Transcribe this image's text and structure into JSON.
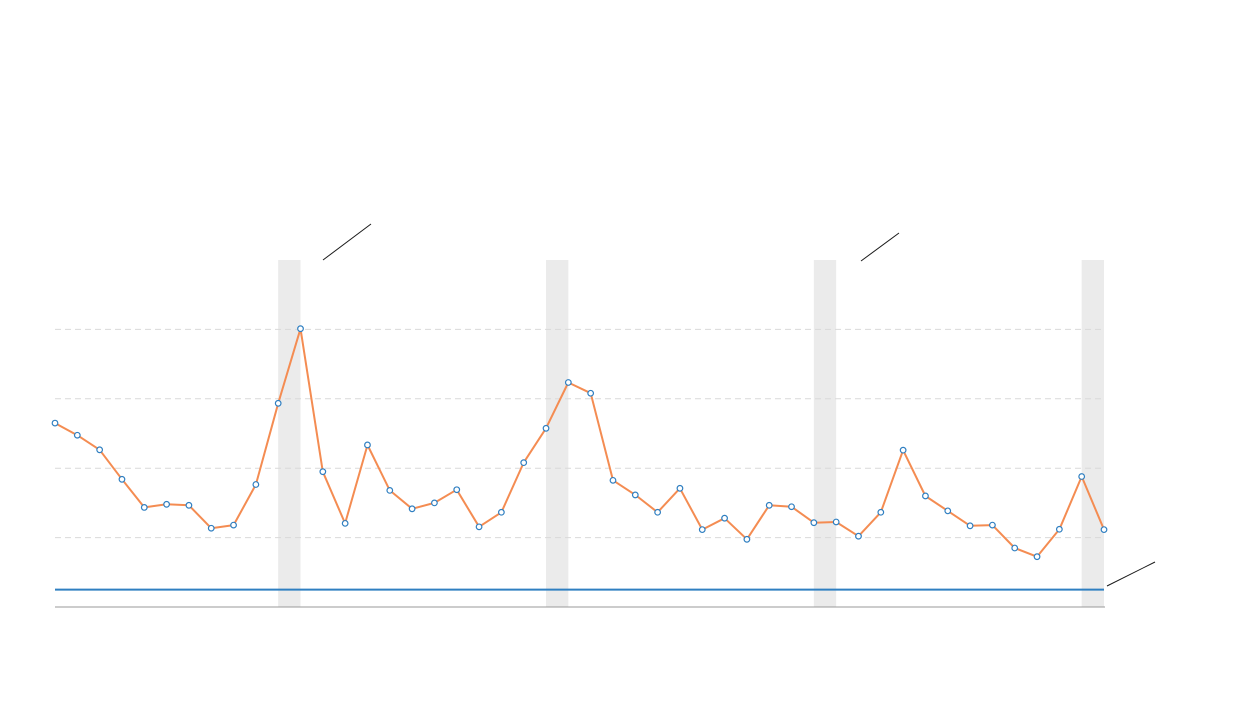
{
  "chart_data": {
    "type": "line",
    "title": "",
    "xlabel": "",
    "ylabel": "",
    "ylim": [
      0,
      100
    ],
    "grid": true,
    "grid_values": [
      20,
      40,
      60,
      80
    ],
    "x": [
      0,
      1,
      2,
      3,
      4,
      5,
      6,
      7,
      8,
      9,
      10,
      11,
      12,
      13,
      14,
      15,
      16,
      17,
      18,
      19,
      20,
      21,
      22,
      23,
      24,
      25,
      26,
      27,
      28,
      29,
      30,
      31,
      32,
      33,
      34,
      35,
      36,
      37,
      38,
      39,
      40,
      41,
      42,
      43,
      44,
      45,
      46,
      47
    ],
    "series": [
      {
        "values": [
          53,
          49.5,
          45.3,
          36.8,
          28.7,
          29.6,
          29.3,
          22.7,
          23.6,
          35.3,
          58.7,
          80.2,
          39,
          24.1,
          46.7,
          33.6,
          28.3,
          30,
          33.8,
          23.1,
          27.3,
          41.6,
          51.5,
          64.7,
          61.6,
          36.5,
          32.3,
          27.3,
          34.2,
          22.3,
          25.6,
          19.5,
          29.3,
          28.9,
          24.3,
          24.5,
          20.4,
          27.3,
          45.2,
          32,
          27.7,
          23.4,
          23.6,
          17,
          14.5,
          22.4,
          37.6,
          22.3
        ],
        "color": "#f48c52"
      }
    ],
    "reference_line": {
      "value": 5,
      "color": "#2f7fc1"
    },
    "highlight_bands": [
      10.5,
      22.5,
      34.5,
      46.5
    ],
    "band_color": "#ebebeb",
    "annotation_leaders": 3
  }
}
